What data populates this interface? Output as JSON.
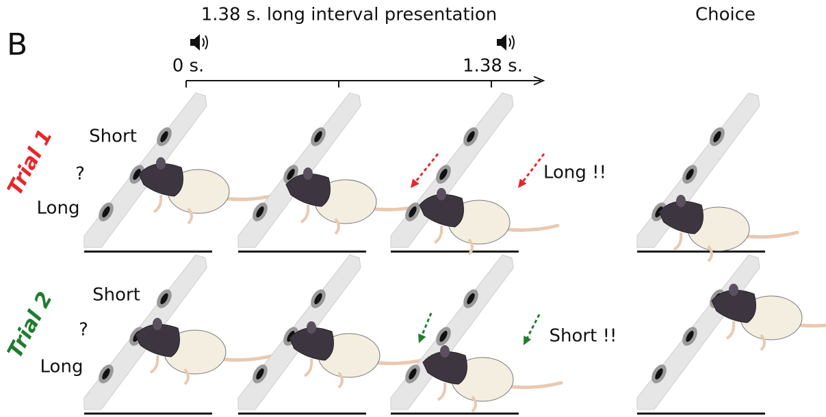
{
  "panel_label": "B",
  "timeline": {
    "title": "1.38 s. long interval presentation",
    "start_label": "0 s.",
    "end_label": "1.38 s."
  },
  "choice_label": "Choice",
  "trials": [
    {
      "label": "Trial 1",
      "top_option": "Short",
      "question": "?",
      "bottom_option": "Long",
      "feedback": "Long !!"
    },
    {
      "label": "Trial 2",
      "top_option": "Short",
      "question": "?",
      "bottom_option": "Long",
      "feedback": "Short !!"
    }
  ]
}
